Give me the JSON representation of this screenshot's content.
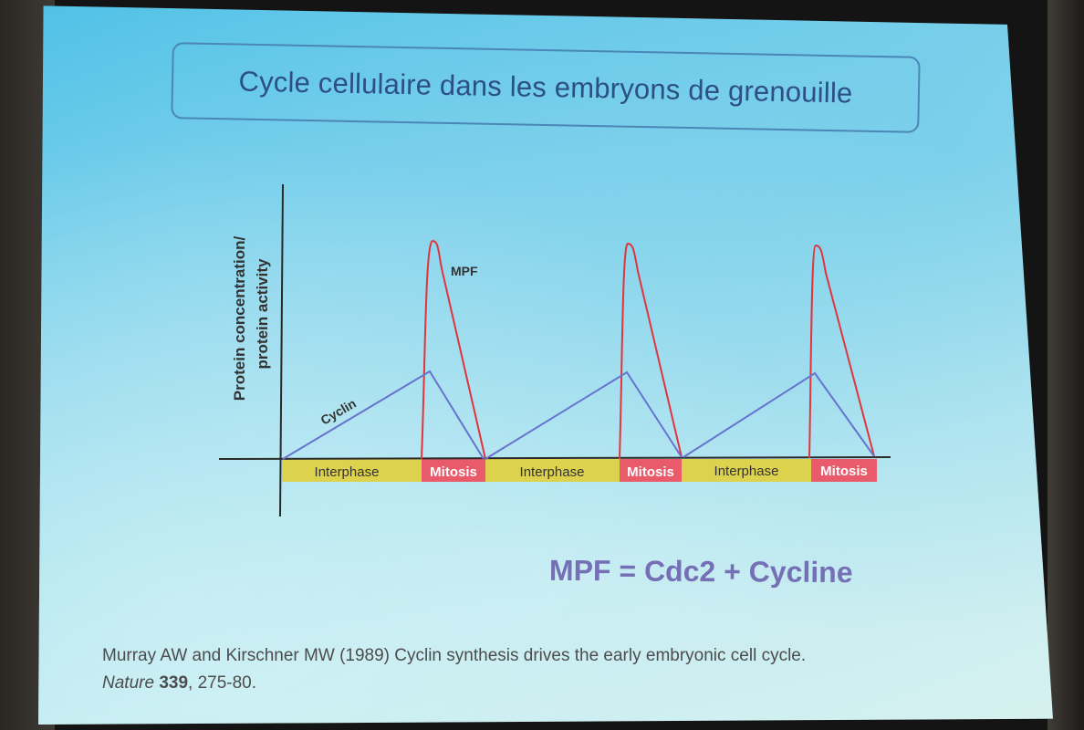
{
  "title": "Cycle cellulaire dans les embryons de grenouille",
  "y_axis_label_line1": "Protein concentration/",
  "y_axis_label_line2": "protein activity",
  "curves": {
    "mpf_label": "MPF",
    "cyclin_label": "Cyclin"
  },
  "phases": [
    "Interphase",
    "Mitosis",
    "Interphase",
    "Mitosis",
    "Interphase",
    "Mitosis"
  ],
  "colors": {
    "interphase": "#ddd24e",
    "mitosis": "#e95a6b",
    "mpf": "#e0343e",
    "cyclin": "#6773cf",
    "axis": "#2a2a2a",
    "formula": "#7570b6",
    "title": "#2c4f86"
  },
  "formula": "MPF = Cdc2 + Cycline",
  "reference": {
    "line1": "Murray AW and Kirschner MW (1989) Cyclin synthesis drives the early embryonic cell cycle.",
    "journal": "Nature",
    "volume": "339",
    "pages": ", 275-80."
  }
}
